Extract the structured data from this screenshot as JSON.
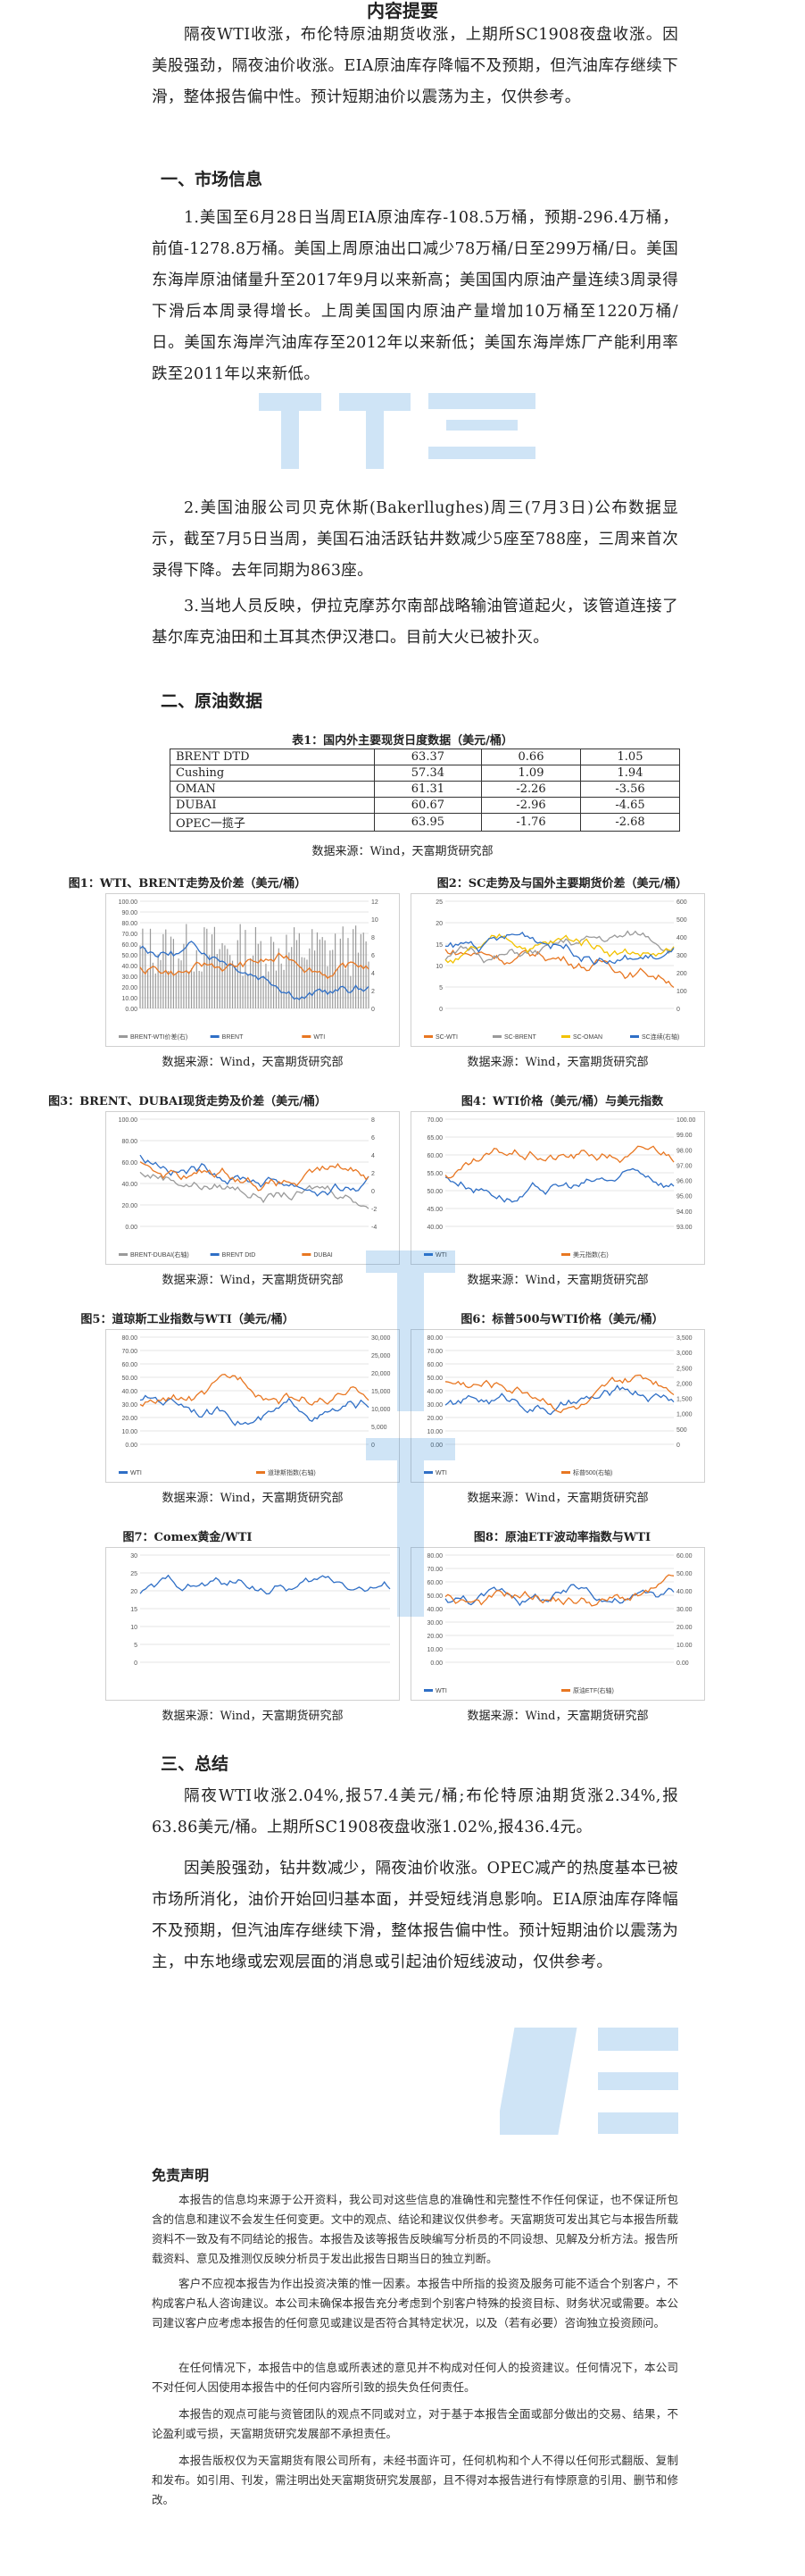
{
  "doc": {
    "title": "内容提要",
    "summary": "隔夜WTI收涨，布伦特原油期货收涨，上期所SC1908夜盘收涨。因美股强劲，隔夜油价收涨。EIA原油库存降幅不及预期，但汽油库存继续下滑，整体报告偏中性。预计短期油价以震荡为主，仅供参考。"
  },
  "section1": {
    "heading": "一、市场信息",
    "p1": "1.美国至6月28日当周EIA原油库存-108.5万桶，预期-296.4万桶，前值-1278.8万桶。美国上周原油出口减少78万桶/日至299万桶/日。美国东海岸原油储量升至2017年9月以来新高；美国国内原油产量连续3周录得下滑后本周录得增长。上周美国国内原油产量增加10万桶至1220万桶/日。美国东海岸汽油库存至2012年以来新低；美国东海岸炼厂产能利用率跌至2011年以来新低。",
    "p2": "2.美国油服公司贝克休斯(Bakerllughes)周三(7月3日)公布数据显示，截至7月5日当周，美国石油活跃钻井数减少5座至788座，三周来首次录得下降。去年同期为863座。",
    "p3": "3.当地人员反映，伊拉克摩苏尔南部战略输油管道起火，该管道连接了基尔库克油田和土耳其杰伊汉港口。目前大火已被扑灭。"
  },
  "section2": {
    "heading": "二、原油数据",
    "table_caption": "表1：国内外主要现货日度数据（美元/桶）",
    "rows": [
      [
        "BRENT DTD",
        "63.37",
        "0.66",
        "1.05"
      ],
      [
        "Cushing",
        "57.34",
        "1.09",
        "1.94"
      ],
      [
        "OMAN",
        "61.31",
        "-2.26",
        "-3.56"
      ],
      [
        "DUBAI",
        "60.67",
        "-2.96",
        "-4.65"
      ],
      [
        "OPEC一揽子",
        "63.95",
        "-1.76",
        "-2.68"
      ]
    ],
    "table_source": "数据来源：Wind，天富期货研究部"
  },
  "charts": {
    "source": "数据来源：Wind，天富期货研究部",
    "c1": {
      "caption": "图1：WTI、BRENT走势及价差（美元/桶）",
      "legend": [
        "BRENT-WTI价差(右)",
        "BRENT",
        "WTI"
      ],
      "yl": [
        "100.00",
        "90.00",
        "80.00",
        "70.00",
        "60.00",
        "50.00",
        "40.00",
        "30.00",
        "20.00",
        "10.00",
        "0.00"
      ],
      "yr": [
        "12",
        "10",
        "8",
        "6",
        "4",
        "2",
        "0"
      ]
    },
    "c2": {
      "caption": "图2：SC走势及与国外主要期货价差（美元/桶）",
      "legend": [
        "SC-WTI",
        "SC-BRENT",
        "SC-OMAN",
        "SC连续(右轴)"
      ],
      "yl": [
        "25",
        "20",
        "15",
        "10",
        "5",
        "0"
      ],
      "yr": [
        "600",
        "500",
        "400",
        "300",
        "200",
        "100",
        "0"
      ]
    },
    "c3": {
      "caption": "图3：BRENT、DUBAI现货走势及价差（美元/桶）",
      "legend": [
        "BRENT-DUBAI(右轴)",
        "BRENT DtD",
        "DUBAI"
      ],
      "yl": [
        "100.00",
        "80.00",
        "60.00",
        "40.00",
        "20.00",
        "0.00"
      ],
      "yr": [
        "8",
        "6",
        "4",
        "2",
        "0",
        "-2",
        "-4"
      ]
    },
    "c4": {
      "caption": "图4：WTI价格（美元/桶）与美元指数",
      "legend": [
        "WTI",
        "美元指数(右)"
      ],
      "yl": [
        "70.00",
        "65.00",
        "60.00",
        "55.00",
        "50.00",
        "45.00",
        "40.00"
      ],
      "yr": [
        "100.00",
        "99.00",
        "98.00",
        "97.00",
        "96.00",
        "95.00",
        "94.00",
        "93.00"
      ]
    },
    "c5": {
      "caption": "图5：道琼斯工业指数与WTI（美元/桶）",
      "legend": [
        "WTI",
        "道琼斯指数(右轴)"
      ],
      "yl": [
        "80.00",
        "70.00",
        "60.00",
        "50.00",
        "40.00",
        "30.00",
        "20.00",
        "10.00",
        "0.00"
      ],
      "yr": [
        "30,000",
        "25,000",
        "20,000",
        "15,000",
        "10,000",
        "5,000",
        "0"
      ]
    },
    "c6": {
      "caption": "图6：标普500与WTI价格（美元/桶）",
      "legend": [
        "WTI",
        "标普500(右轴)"
      ],
      "yl": [
        "80.00",
        "70.00",
        "60.00",
        "50.00",
        "40.00",
        "30.00",
        "20.00",
        "10.00",
        "0.00"
      ],
      "yr": [
        "3,500",
        "3,000",
        "2,500",
        "2,000",
        "1,500",
        "1,000",
        "500",
        "0"
      ]
    },
    "c7": {
      "caption": "图7：Comex黄金/WTI",
      "legend": [],
      "yl": [
        "30",
        "25",
        "20",
        "15",
        "10",
        "5",
        "0"
      ],
      "yr": []
    },
    "c8": {
      "caption": "图8：原油ETF波动率指数与WTI",
      "legend": [
        "WTI",
        "原油ETF(右轴)"
      ],
      "yl": [
        "80.00",
        "70.00",
        "60.00",
        "50.00",
        "40.00",
        "30.00",
        "20.00",
        "10.00",
        "0.00"
      ],
      "yr": [
        "60.00",
        "50.00",
        "40.00",
        "30.00",
        "20.00",
        "10.00",
        "0.00"
      ]
    }
  },
  "section3": {
    "heading": "三、总结",
    "p1": "隔夜WTI收涨2.04%,报57.4美元/桶;布伦特原油期货涨2.34%,报63.86美元/桶。上期所SC1908夜盘收涨1.02%,报436.4元。",
    "p2": "因美股强劲，钻井数减少，隔夜油价收涨。OPEC减产的热度基本已被市场所消化，油价开始回归基本面，并受短线消息影响。EIA原油库存降幅不及预期，但汽油库存继续下滑，整体报告偏中性。预计短期油价以震荡为主，中东地缘或宏观层面的消息或引起油价短线波动，仅供参考。"
  },
  "disclaimer": {
    "title": "免责声明",
    "p1": "本报告的信息均来源于公开资料，我公司对这些信息的准确性和完整性不作任何保证，也不保证所包含的信息和建议不会发生任何变更。文中的观点、结论和建议仅供参考。天富期货可发出其它与本报告所载资料不一致及有不同结论的报告。本报告及该等报告反映编写分析员的不同设想、见解及分析方法。报告所载资料、意见及推测仅反映分析员于发出此报告日期当日的独立判断。",
    "p2": "客户不应视本报告为作出投资决策的惟一因素。本报告中所指的投资及服务可能不适合个别客户，不构成客户私人咨询建议。本公司未确保本报告充分考虑到个别客户特殊的投资目标、财务状况或需要。本公司建议客户应考虑本报告的任何意见或建议是否符合其特定状况，以及（若有必要）咨询独立投资顾问。",
    "p3": "在任何情况下，本报告中的信息或所表述的意见并不构成对任何人的投资建议。任何情况下，本公司不对任何人因使用本报告中的任何内容所引致的损失负任何责任。",
    "p4": "本报告的观点可能与资管团队的观点不同或对立，对于基于本报告全面或部分做出的交易、结果，不论盈利或亏损，天富期货研究发展部不承担责任。",
    "p5": "本报告版权仅为天富期货有限公司所有，未经书面许可，任何机构和个人不得以任何形式翻版、复制和发布。如引用、刊发，需注明出处天富期货研究发展部，且不得对本报告进行有悖原意的引用、删节和修改。"
  }
}
